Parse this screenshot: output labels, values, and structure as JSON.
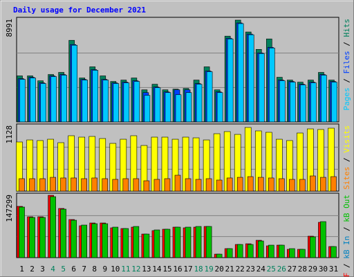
{
  "title": "Daily usage for December 2021",
  "separator": "/",
  "chart_data": [
    {
      "type": "bar",
      "legend_reversed": true,
      "ylim": [
        0,
        8991
      ],
      "yticks": [
        8991
      ],
      "series": [
        {
          "name": "Hits",
          "color": "#00805c",
          "values": [
            4010,
            4010,
            3584,
            4131,
            4313,
            7108,
            3827,
            4799,
            4010,
            3524,
            3645,
            3827,
            2795,
            3281,
            2795,
            2855,
            2916,
            3645,
            4799,
            2795,
            7472,
            8870,
            7837,
            6318,
            7229,
            3888,
            3645,
            3463,
            3645,
            4313,
            3645
          ]
        },
        {
          "name": "Files",
          "color": "#0040ff",
          "values": [
            3766,
            3887,
            3401,
            4009,
            4130,
            6743,
            3705,
            4556,
            3705,
            3401,
            3462,
            3584,
            2552,
            3037,
            2612,
            2795,
            2795,
            3341,
            4434,
            2612,
            7289,
            8626,
            7654,
            6014,
            6500,
            3644,
            3523,
            3280,
            3462,
            4130,
            3523
          ]
        },
        {
          "name": "Pages",
          "color": "#00c8ff",
          "values": [
            3706,
            3827,
            3341,
            3949,
            4070,
            6683,
            3645,
            4496,
            3645,
            3341,
            3402,
            3524,
            2309,
            2977,
            2552,
            2369,
            2552,
            3281,
            4374,
            2552,
            7229,
            8566,
            7594,
            5954,
            6440,
            3584,
            3463,
            3220,
            3402,
            4070,
            3463
          ]
        }
      ]
    },
    {
      "type": "bar",
      "legend_reversed": true,
      "ylim": [
        0,
        1128
      ],
      "yticks": [
        1128
      ],
      "series": [
        {
          "name": "Visits",
          "color": "#ffff00",
          "values": [
            843,
            878,
            867,
            890,
            831,
            950,
            926,
            938,
            902,
            819,
            890,
            950,
            783,
            926,
            926,
            890,
            926,
            914,
            878,
            985,
            1021,
            973,
            1092,
            1033,
            1009,
            890,
            867,
            997,
            1068,
            1057,
            1080
          ]
        },
        {
          "name": "Sites",
          "color": "#ff8000",
          "values": [
            214,
            214,
            214,
            237,
            226,
            226,
            214,
            226,
            214,
            202,
            214,
            214,
            178,
            202,
            214,
            273,
            214,
            202,
            214,
            190,
            226,
            237,
            249,
            237,
            226,
            214,
            202,
            202,
            261,
            237,
            249
          ]
        }
      ]
    },
    {
      "type": "bar",
      "legend_reversed": false,
      "ylim": [
        0,
        147299
      ],
      "yticks": [
        147299
      ],
      "categories": [
        "1",
        "2",
        "3",
        "4",
        "5",
        "6",
        "7",
        "8",
        "9",
        "10",
        "11",
        "12",
        "13",
        "14",
        "15",
        "16",
        "17",
        "18",
        "19",
        "20",
        "21",
        "22",
        "23",
        "24",
        "25",
        "26",
        "27",
        "28",
        "29",
        "30",
        "31"
      ],
      "category_colors": [
        "#000000",
        "#000000",
        "#000000",
        "#00805c",
        "#00805c",
        "#000000",
        "#000000",
        "#000000",
        "#000000",
        "#000000",
        "#00805c",
        "#00805c",
        "#000000",
        "#000000",
        "#000000",
        "#000000",
        "#000000",
        "#00805c",
        "#00805c",
        "#000000",
        "#000000",
        "#000000",
        "#000000",
        "#000000",
        "#00805c",
        "#00805c",
        "#000000",
        "#000000",
        "#000000",
        "#000000",
        "#000000"
      ],
      "series": [
        {
          "name": "kB F",
          "color": "#ff0000",
          "values": [
            119806,
            95521,
            95521,
            145680,
            114949,
            89045,
            74474,
            80950,
            80950,
            69617,
            67998,
            71236,
            55046,
            63141,
            66379,
            71236,
            69617,
            71236,
            72855,
            8095,
            21047,
            30761,
            32380,
            40475,
            27523,
            29142,
            19428,
            19428,
            50189,
            82569,
            25904
          ]
        },
        {
          "name": "kB In",
          "color": "#0080c0",
          "values": [
            null,
            null,
            null,
            null,
            null,
            null,
            null,
            null,
            null,
            null,
            null,
            null,
            null,
            null,
            null,
            null,
            null,
            null,
            null,
            null,
            null,
            null,
            null,
            null,
            null,
            null,
            null,
            null,
            null,
            null,
            null
          ]
        },
        {
          "name": "kB Out",
          "color": "#00c000",
          "values": [
            118187,
            93902,
            93902,
            142472,
            113330,
            87426,
            76093,
            79331,
            79331,
            71236,
            67998,
            72855,
            55046,
            64760,
            66379,
            71236,
            71236,
            72855,
            72855,
            8095,
            21047,
            30761,
            30761,
            38856,
            29142,
            29142,
            21047,
            19428,
            48570,
            84188,
            25904
          ]
        }
      ]
    }
  ]
}
